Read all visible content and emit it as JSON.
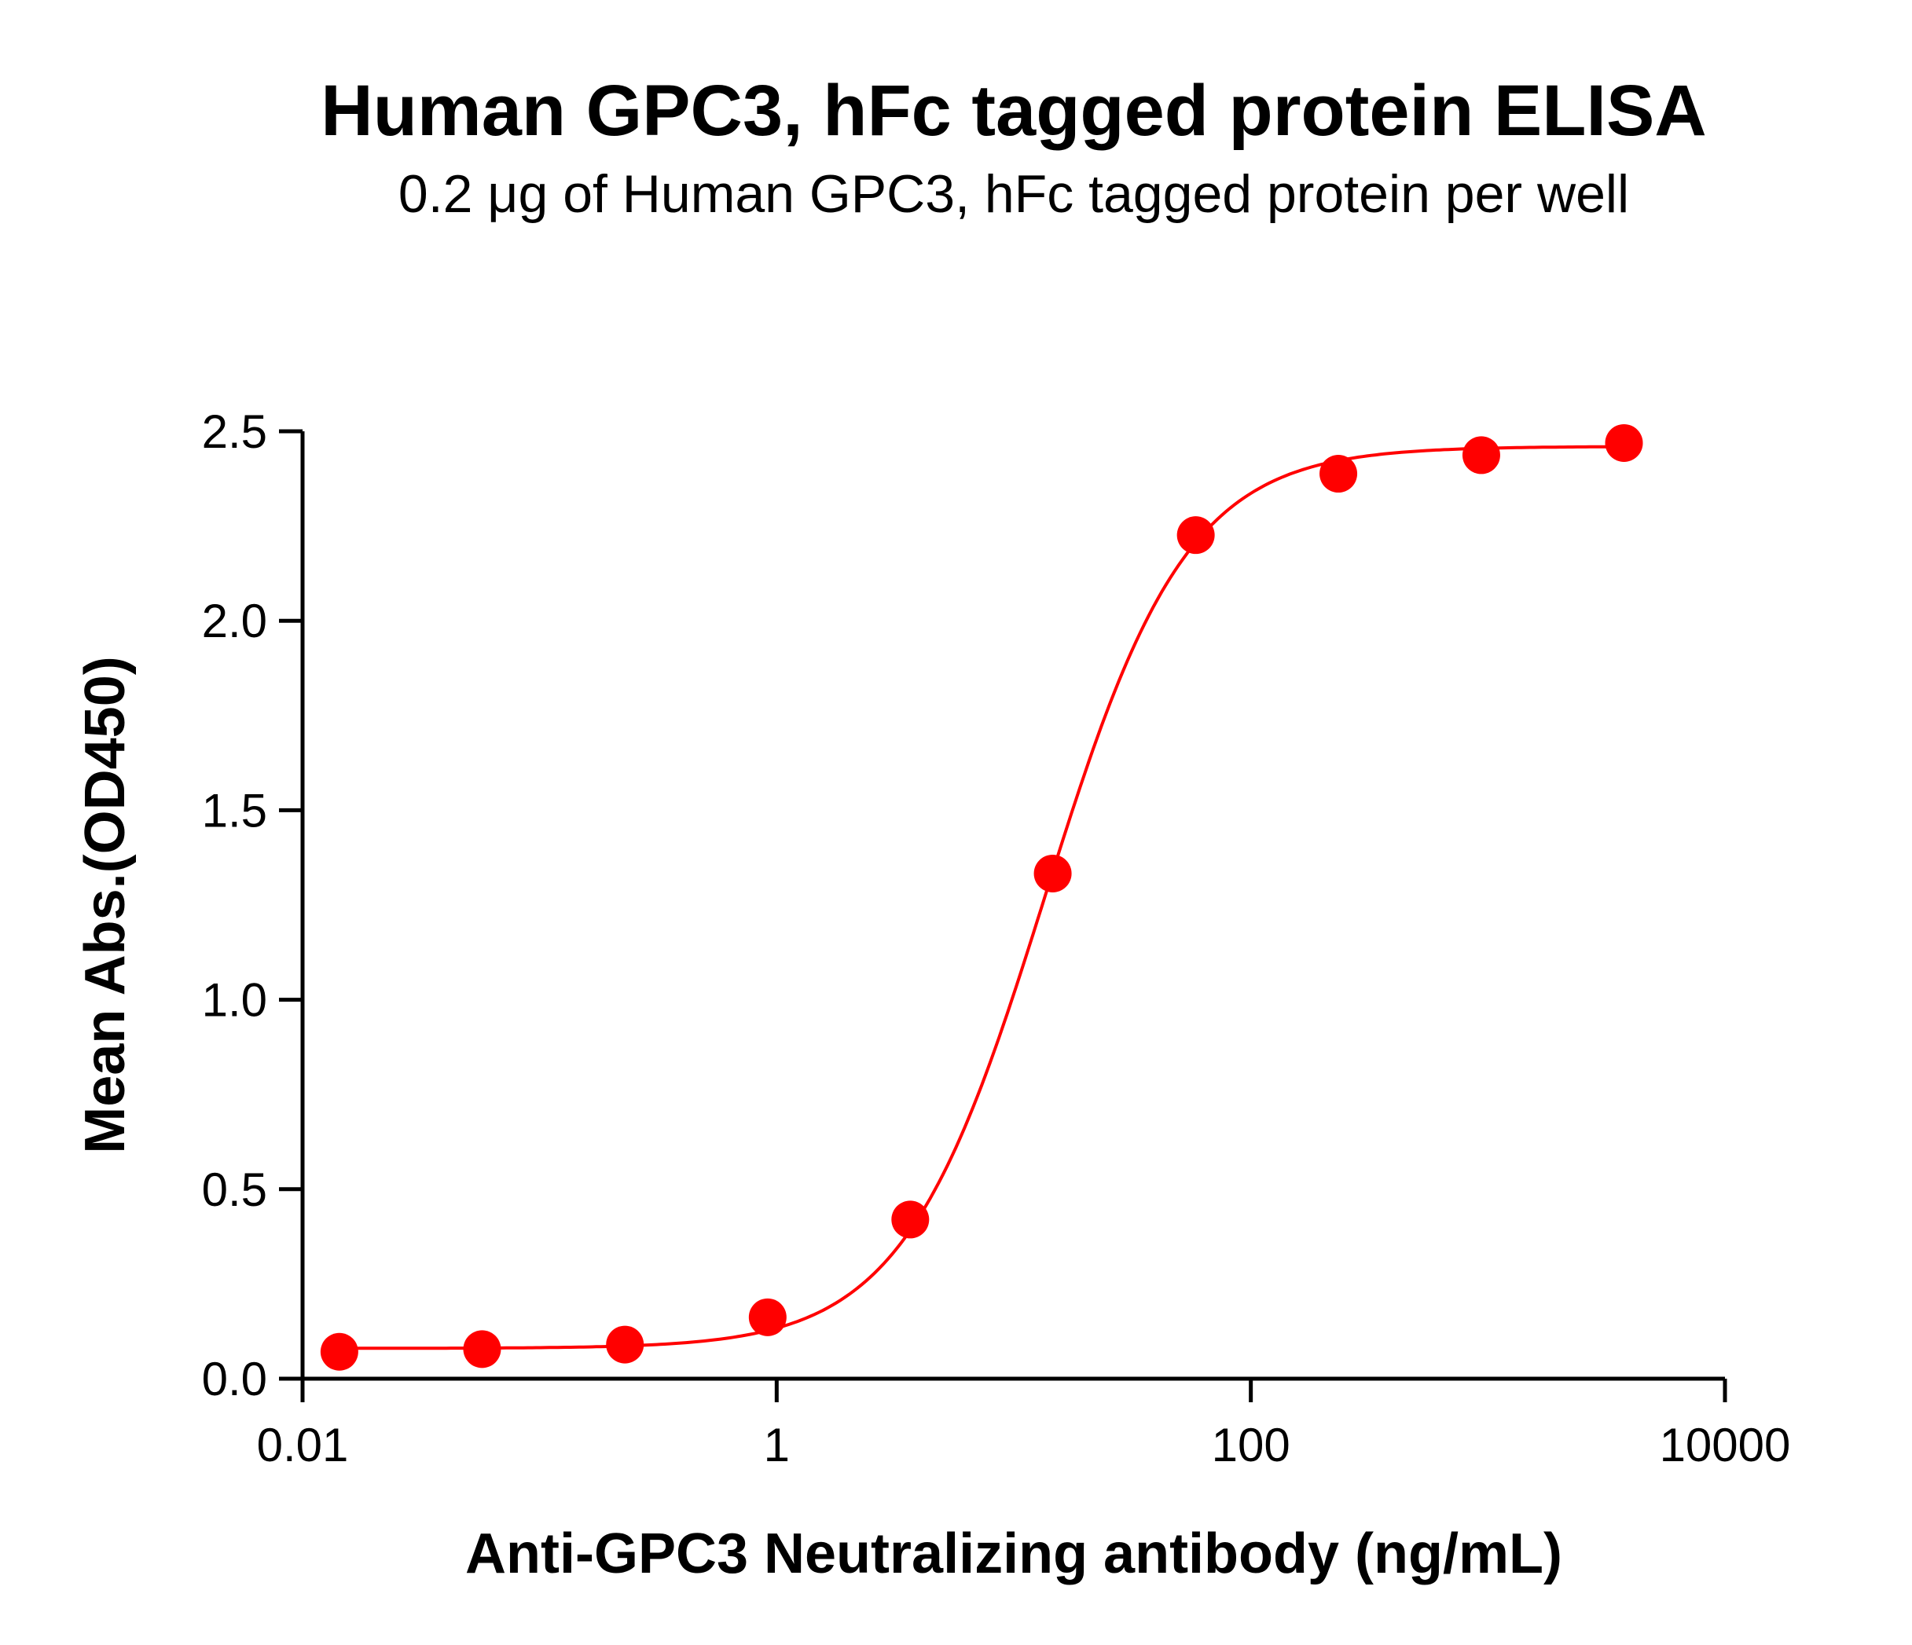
{
  "chart_data": {
    "type": "scatter",
    "title": "Human GPC3, hFc tagged protein ELISA",
    "subtitle": "0.2 μg of Human GPC3, hFc tagged protein per well",
    "xlabel": "Anti-GPC3 Neutralizing antibody (ng/mL)",
    "ylabel": "Mean Abs.(OD450)",
    "x_scale": "log",
    "xlim": [
      0.01,
      10000
    ],
    "ylim": [
      0,
      2.5
    ],
    "x_ticks": [
      0.01,
      1,
      100,
      10000
    ],
    "x_tick_labels": [
      "0.01",
      "1",
      "100",
      "10000"
    ],
    "y_ticks": [
      0,
      0.5,
      1.0,
      1.5,
      2.0,
      2.5
    ],
    "y_tick_labels": [
      "0.0",
      "0.5",
      "1.0",
      "1.5",
      "2.0",
      "2.5"
    ],
    "grid": false,
    "series": [
      {
        "x": [
          0.0143,
          0.0572,
          0.229,
          0.916,
          3.66,
          14.6,
          58.6,
          234,
          938,
          3750
        ],
        "y": [
          0.071,
          0.078,
          0.09,
          0.162,
          0.42,
          1.333,
          2.226,
          2.388,
          2.437,
          2.469
        ],
        "color": "#ff0000",
        "marker": "circle",
        "fit": {
          "model": "4PL",
          "bottom": 0.08,
          "top": 2.46,
          "ec50": 13.5,
          "hill": 1.45
        }
      }
    ]
  }
}
